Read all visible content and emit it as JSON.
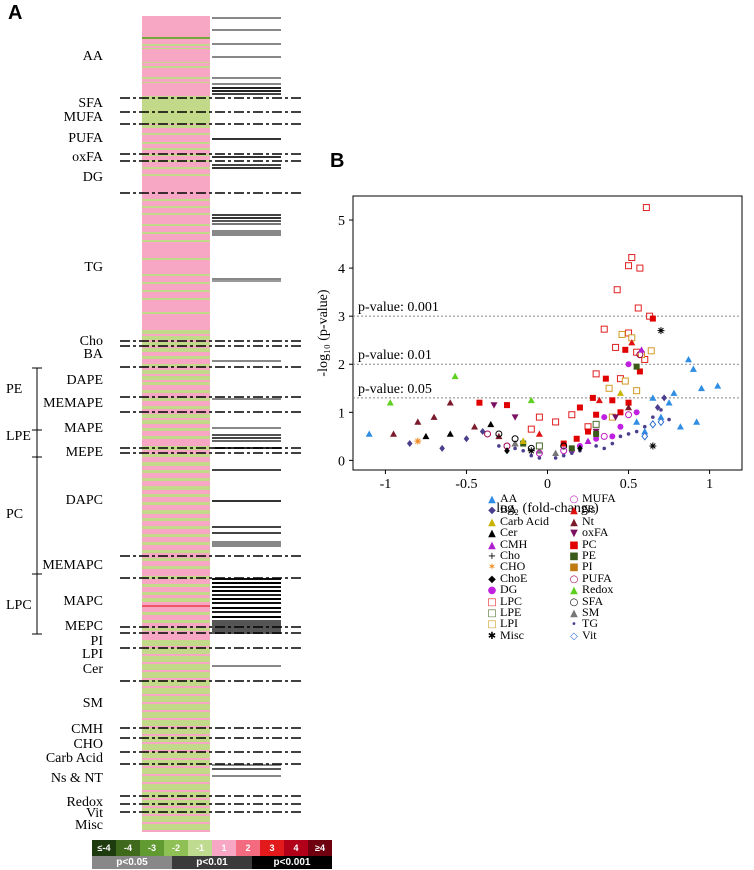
{
  "panel_a": {
    "letter": "A",
    "categories": [
      "AA",
      "SFA",
      "MUFA",
      "PUFA",
      "oxFA",
      "DG",
      "TG",
      "Cho",
      "BA",
      "DAPE",
      "MEMAPE",
      "MAPE",
      "MEPE",
      "DAPC",
      "MEMAPC",
      "MAPC",
      "MEPC",
      "PI",
      "LPI",
      "Cer",
      "SM",
      "CMH",
      "CHO",
      "Carb Acid",
      "Ns & NT",
      "Redox",
      "Vit",
      "Misc"
    ],
    "groups": [
      "PE",
      "LPE",
      "PC",
      "LPC"
    ]
  },
  "panel_b": {
    "letter": "B"
  },
  "colors": {
    "pink": "#f7a6c4",
    "green": "#c3d98a",
    "dark_green": "#77a83a",
    "red": "#ee5566"
  },
  "color_scale": {
    "bins": [
      "≤-4",
      "-4",
      "-3",
      "-2",
      "-1",
      "1",
      "2",
      "3",
      "4",
      "≥4"
    ],
    "bin_colors": [
      "#1e3a0f",
      "#3f6a1c",
      "#629a32",
      "#8fc055",
      "#bedb8f",
      "#f7a6c4",
      "#f46a7e",
      "#e31a1c",
      "#b2001a",
      "#6e0010"
    ],
    "pvalue_bars": [
      "p<0.05",
      "p<0.01",
      "p<0.001"
    ],
    "pvalue_colors": [
      "#888888",
      "#3a3a3a",
      "#000000"
    ]
  },
  "chart_data": {
    "type": "scatter",
    "title": "",
    "xlabel": "log₂ (fold-change)",
    "ylabel": "-log₁₀ (p-value)",
    "xlim": [
      -1.2,
      1.2
    ],
    "ylim": [
      -0.2,
      5.5
    ],
    "xticks": [
      "-1",
      "-0.5",
      "0",
      "0.5",
      "1"
    ],
    "xtick_values": [
      -1,
      -0.5,
      0,
      0.5,
      1
    ],
    "yticks": [
      "0",
      "1",
      "2",
      "3",
      "4",
      "5"
    ],
    "ytick_values": [
      0,
      1,
      2,
      3,
      4,
      5
    ],
    "thresholds": [
      {
        "label": "p-value: 0.001",
        "y": 3
      },
      {
        "label": "p-value: 0.01",
        "y": 2
      },
      {
        "label": "p-value: 0.05",
        "y": 1.3
      }
    ],
    "legend": [
      {
        "name": "AA",
        "color": "#2f8de4",
        "symbol": "▲"
      },
      {
        "name": "BA",
        "color": "#4a3f8c",
        "symbol": "◆"
      },
      {
        "name": "Carb Acid",
        "color": "#c8b400",
        "symbol": "▲"
      },
      {
        "name": "Cer",
        "color": "#000000",
        "symbol": "▲"
      },
      {
        "name": "CMH",
        "color": "#b020d0",
        "symbol": "▲"
      },
      {
        "name": "Cho",
        "color": "#000000",
        "symbol": "+"
      },
      {
        "name": "CHO",
        "color": "#f08a20",
        "symbol": "✶"
      },
      {
        "name": "ChoE",
        "color": "#000000",
        "symbol": "◆"
      },
      {
        "name": "DG",
        "color": "#c020e0",
        "symbol": "●"
      },
      {
        "name": "LPC",
        "color": "#e02020",
        "symbol": "□"
      },
      {
        "name": "LPE",
        "color": "#4a6a2a",
        "symbol": "□"
      },
      {
        "name": "LPI",
        "color": "#d09a20",
        "symbol": "□"
      },
      {
        "name": "Misc",
        "color": "#000000",
        "symbol": "✱"
      },
      {
        "name": "MUFA",
        "color": "#c020c0",
        "symbol": "○"
      },
      {
        "name": "Ns",
        "color": "#e01010",
        "symbol": "▲"
      },
      {
        "name": "Nt",
        "color": "#7a1a2a",
        "symbol": "▲"
      },
      {
        "name": "oxFA",
        "color": "#7a1060",
        "symbol": "▼"
      },
      {
        "name": "PC",
        "color": "#e00000",
        "symbol": "■"
      },
      {
        "name": "PE",
        "color": "#3a5a1a",
        "symbol": "■"
      },
      {
        "name": "PI",
        "color": "#c07a10",
        "symbol": "■"
      },
      {
        "name": "PUFA",
        "color": "#a00050",
        "symbol": "○"
      },
      {
        "name": "Redox",
        "color": "#60d020",
        "symbol": "▲"
      },
      {
        "name": "SFA",
        "color": "#000000",
        "symbol": "○"
      },
      {
        "name": "SM",
        "color": "#777777",
        "symbol": "▲"
      },
      {
        "name": "TG",
        "color": "#4a3f8c",
        "symbol": "•"
      },
      {
        "name": "Vit",
        "color": "#2f6fd0",
        "symbol": "◇"
      }
    ],
    "series": [
      {
        "name": "LPC",
        "points": [
          [
            0.61,
            5.26
          ],
          [
            0.52,
            4.22
          ],
          [
            0.5,
            4.05
          ],
          [
            0.57,
            4.0
          ],
          [
            0.43,
            3.55
          ],
          [
            0.56,
            3.17
          ],
          [
            0.63,
            3.0
          ],
          [
            0.35,
            2.73
          ],
          [
            0.5,
            2.65
          ],
          [
            0.42,
            2.35
          ],
          [
            0.55,
            2.25
          ],
          [
            0.6,
            2.1
          ],
          [
            0.3,
            1.8
          ],
          [
            0.45,
            1.7
          ],
          [
            0.15,
            0.95
          ],
          [
            0.05,
            0.8
          ],
          [
            0.25,
            0.7
          ],
          [
            -0.1,
            0.65
          ],
          [
            -0.05,
            0.9
          ]
        ]
      },
      {
        "name": "LPI",
        "points": [
          [
            0.46,
            2.62
          ],
          [
            0.52,
            2.55
          ],
          [
            0.58,
            2.2
          ],
          [
            0.64,
            2.28
          ],
          [
            0.48,
            1.65
          ],
          [
            0.38,
            1.5
          ],
          [
            0.55,
            1.45
          ],
          [
            0.4,
            0.9
          ]
        ]
      },
      {
        "name": "PC",
        "points": [
          [
            0.65,
            2.95
          ],
          [
            0.48,
            2.3
          ],
          [
            0.57,
            1.85
          ],
          [
            0.36,
            1.7
          ],
          [
            0.28,
            1.3
          ],
          [
            0.2,
            1.1
          ],
          [
            0.3,
            0.95
          ],
          [
            0.25,
            0.6
          ],
          [
            0.18,
            0.45
          ],
          [
            -0.25,
            1.15
          ],
          [
            -0.42,
            1.2
          ],
          [
            0.45,
            1.0
          ],
          [
            0.1,
            0.35
          ],
          [
            0.5,
            1.2
          ],
          [
            0.4,
            1.25
          ]
        ]
      },
      {
        "name": "AA",
        "points": [
          [
            0.87,
            2.1
          ],
          [
            0.9,
            1.9
          ],
          [
            0.95,
            1.5
          ],
          [
            1.05,
            1.55
          ],
          [
            0.75,
            1.2
          ],
          [
            0.7,
            0.9
          ],
          [
            0.82,
            0.7
          ],
          [
            0.6,
            0.6
          ],
          [
            0.55,
            0.8
          ],
          [
            0.65,
            1.3
          ],
          [
            -1.1,
            0.55
          ],
          [
            0.92,
            0.8
          ],
          [
            0.78,
            1.4
          ]
        ]
      },
      {
        "name": "Redox",
        "points": [
          [
            -0.57,
            1.75
          ],
          [
            -0.1,
            1.25
          ],
          [
            -0.97,
            1.2
          ]
        ]
      },
      {
        "name": "Nt",
        "points": [
          [
            -0.95,
            0.55
          ],
          [
            -0.8,
            0.8
          ],
          [
            -0.7,
            0.9
          ],
          [
            -0.6,
            1.2
          ],
          [
            -0.45,
            0.7
          ],
          [
            -0.3,
            0.5
          ],
          [
            -0.2,
            0.35
          ],
          [
            0.5,
            1.1
          ]
        ]
      },
      {
        "name": "oxFA",
        "points": [
          [
            -0.33,
            1.15
          ],
          [
            -0.2,
            0.9
          ],
          [
            0.3,
            0.6
          ],
          [
            0.42,
            0.9
          ]
        ]
      },
      {
        "name": "DG",
        "points": [
          [
            0.5,
            2.0
          ],
          [
            0.35,
            0.9
          ],
          [
            0.3,
            0.45
          ],
          [
            0.15,
            0.2
          ],
          [
            0.2,
            0.3
          ],
          [
            0.45,
            0.7
          ],
          [
            0.55,
            1.0
          ],
          [
            0.4,
            0.5
          ]
        ]
      },
      {
        "name": "PUFA",
        "points": [
          [
            0.57,
            2.2
          ],
          [
            -0.37,
            0.55
          ],
          [
            -0.25,
            0.3
          ]
        ]
      },
      {
        "name": "PE",
        "points": [
          [
            0.55,
            1.95
          ],
          [
            0.3,
            0.55
          ],
          [
            0.15,
            0.25
          ],
          [
            -0.15,
            0.35
          ]
        ]
      },
      {
        "name": "TG",
        "points": [
          [
            0.25,
            0.4
          ],
          [
            0.3,
            0.3
          ],
          [
            0.35,
            0.25
          ],
          [
            0.4,
            0.35
          ],
          [
            0.45,
            0.5
          ],
          [
            0.5,
            0.55
          ],
          [
            0.55,
            0.6
          ],
          [
            0.6,
            0.7
          ],
          [
            0.2,
            0.2
          ],
          [
            0.1,
            0.1
          ],
          [
            0.05,
            0.05
          ],
          [
            -0.05,
            0.05
          ],
          [
            -0.1,
            0.1
          ],
          [
            -0.15,
            0.2
          ],
          [
            -0.2,
            0.25
          ],
          [
            -0.3,
            0.3
          ],
          [
            0.65,
            0.9
          ],
          [
            0.7,
            1.05
          ],
          [
            0.75,
            0.85
          ],
          [
            0.15,
            0.15
          ]
        ]
      },
      {
        "name": "BA",
        "points": [
          [
            -0.4,
            0.6
          ],
          [
            -0.5,
            0.45
          ],
          [
            -0.65,
            0.25
          ],
          [
            -0.85,
            0.35
          ],
          [
            0.72,
            1.3
          ],
          [
            0.68,
            1.1
          ]
        ]
      },
      {
        "name": "SM",
        "points": [
          [
            -0.15,
            0.4
          ],
          [
            -0.05,
            0.2
          ],
          [
            0.05,
            0.15
          ],
          [
            -0.2,
            0.35
          ]
        ]
      },
      {
        "name": "Cer",
        "points": [
          [
            -0.35,
            0.75
          ],
          [
            -0.6,
            0.55
          ],
          [
            -0.75,
            0.5
          ]
        ]
      },
      {
        "name": "Vit",
        "points": [
          [
            0.7,
            0.8
          ],
          [
            0.6,
            0.5
          ],
          [
            0.65,
            0.75
          ]
        ]
      },
      {
        "name": "SFA",
        "points": [
          [
            -0.1,
            0.25
          ],
          [
            -0.2,
            0.45
          ],
          [
            0.1,
            0.3
          ],
          [
            -0.3,
            0.55
          ]
        ]
      },
      {
        "name": "MUFA",
        "points": [
          [
            -0.05,
            0.15
          ],
          [
            0.1,
            0.2
          ],
          [
            0.35,
            0.5
          ],
          [
            0.5,
            0.95
          ]
        ]
      },
      {
        "name": "Misc",
        "points": [
          [
            0.7,
            2.7
          ],
          [
            0.65,
            0.3
          ],
          [
            -0.1,
            0.2
          ]
        ]
      },
      {
        "name": "Ns",
        "points": [
          [
            0.52,
            2.45
          ],
          [
            -0.05,
            0.55
          ],
          [
            0.32,
            1.25
          ]
        ]
      },
      {
        "name": "Carb Acid",
        "points": [
          [
            0.45,
            1.4
          ],
          [
            -0.15,
            0.4
          ]
        ]
      },
      {
        "name": "CMH",
        "points": [
          [
            0.58,
            2.3
          ],
          [
            0.25,
            0.4
          ]
        ]
      },
      {
        "name": "CHO",
        "points": [
          [
            -0.8,
            0.4
          ]
        ]
      },
      {
        "name": "ChoE",
        "points": [
          [
            0.2,
            0.25
          ],
          [
            -0.25,
            0.2
          ]
        ]
      },
      {
        "name": "LPE",
        "points": [
          [
            0.3,
            0.75
          ],
          [
            -0.05,
            0.3
          ]
        ]
      }
    ]
  }
}
